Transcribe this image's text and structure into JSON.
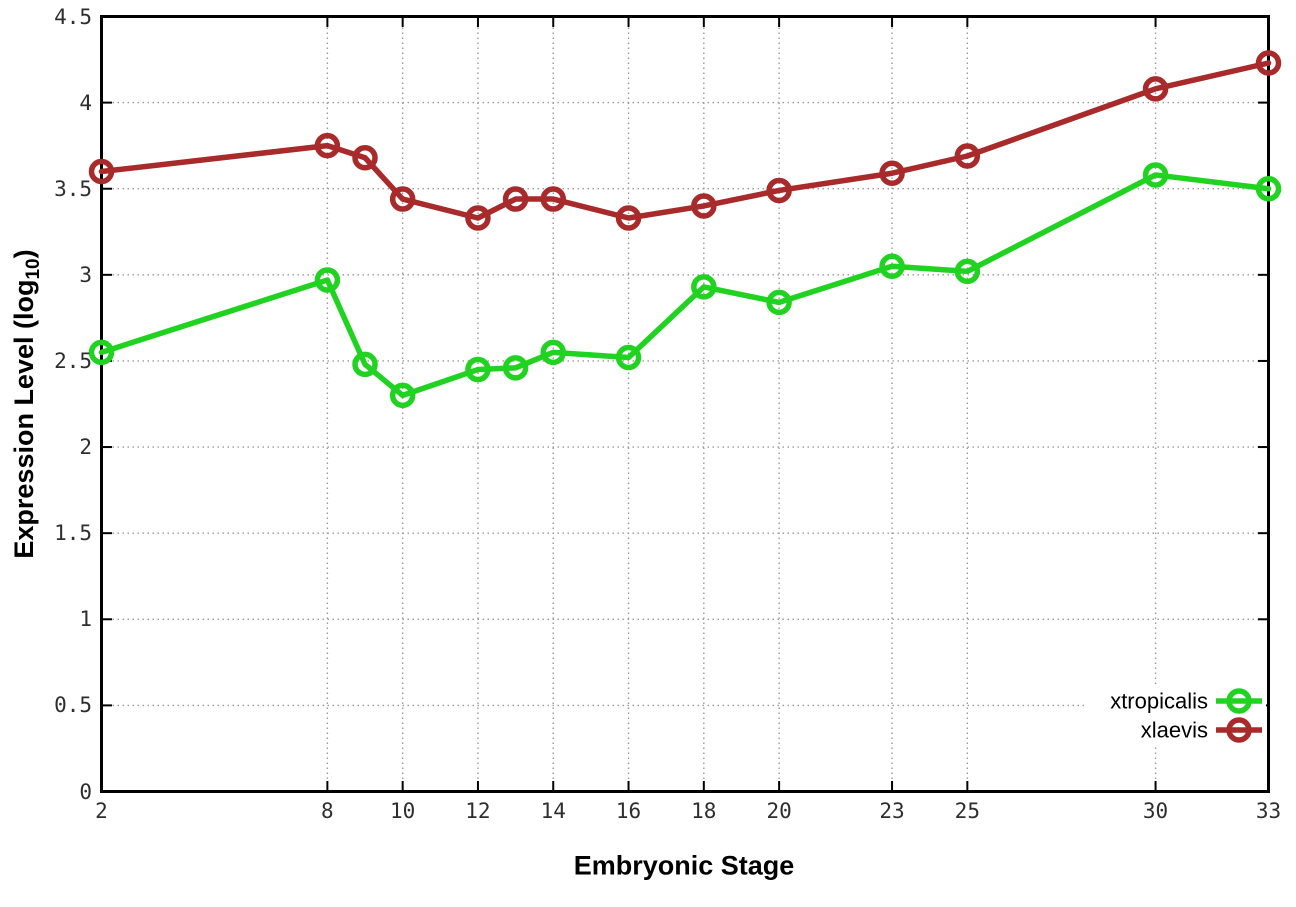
{
  "chart_data": {
    "type": "line",
    "title": "",
    "xlabel": "Embryonic Stage",
    "ylabel": "Expression Level (log10)",
    "ylabel_parts": {
      "prefix": "Expression Level (log",
      "sub": "10",
      "suffix": ")"
    },
    "xlim": [
      2,
      33
    ],
    "ylim": [
      0,
      4.5
    ],
    "grid": true,
    "legend_position": "bottom-right",
    "xticks": [
      {
        "value": 2,
        "label": "2"
      },
      {
        "value": 8,
        "label": "8"
      },
      {
        "value": 10,
        "label": "10"
      },
      {
        "value": 12,
        "label": "12"
      },
      {
        "value": 14,
        "label": "14"
      },
      {
        "value": 16,
        "label": "16"
      },
      {
        "value": 18,
        "label": "18"
      },
      {
        "value": 20,
        "label": "20"
      },
      {
        "value": 23,
        "label": "23"
      },
      {
        "value": 25,
        "label": "25"
      },
      {
        "value": 30,
        "label": "30"
      },
      {
        "value": 33,
        "label": "33"
      }
    ],
    "yticks": [
      {
        "value": 0,
        "label": "0"
      },
      {
        "value": 0.5,
        "label": "0.5"
      },
      {
        "value": 1,
        "label": "1"
      },
      {
        "value": 1.5,
        "label": "1.5"
      },
      {
        "value": 2,
        "label": "2"
      },
      {
        "value": 2.5,
        "label": "2.5"
      },
      {
        "value": 3,
        "label": "3"
      },
      {
        "value": 3.5,
        "label": "3.5"
      },
      {
        "value": 4,
        "label": "4"
      },
      {
        "value": 4.5,
        "label": "4.5"
      }
    ],
    "x": [
      2,
      8,
      9,
      10,
      12,
      13,
      14,
      16,
      18,
      20,
      23,
      25,
      30,
      33
    ],
    "series": [
      {
        "name": "xtropicalis",
        "color": "#21d321",
        "values": [
          2.55,
          2.97,
          2.48,
          2.3,
          2.45,
          2.46,
          2.55,
          2.52,
          2.93,
          2.84,
          3.05,
          3.02,
          3.58,
          3.5
        ]
      },
      {
        "name": "xlaevis",
        "color": "#a82a2a",
        "values": [
          3.6,
          3.75,
          3.68,
          3.44,
          3.33,
          3.44,
          3.44,
          3.33,
          3.4,
          3.49,
          3.59,
          3.69,
          4.08,
          4.23
        ]
      }
    ],
    "colors": {
      "border": "#000000",
      "grid": "#9a9a9a",
      "tick_label": "#2e2e2e",
      "background": "#ffffff",
      "legend_text": "#000000"
    }
  }
}
